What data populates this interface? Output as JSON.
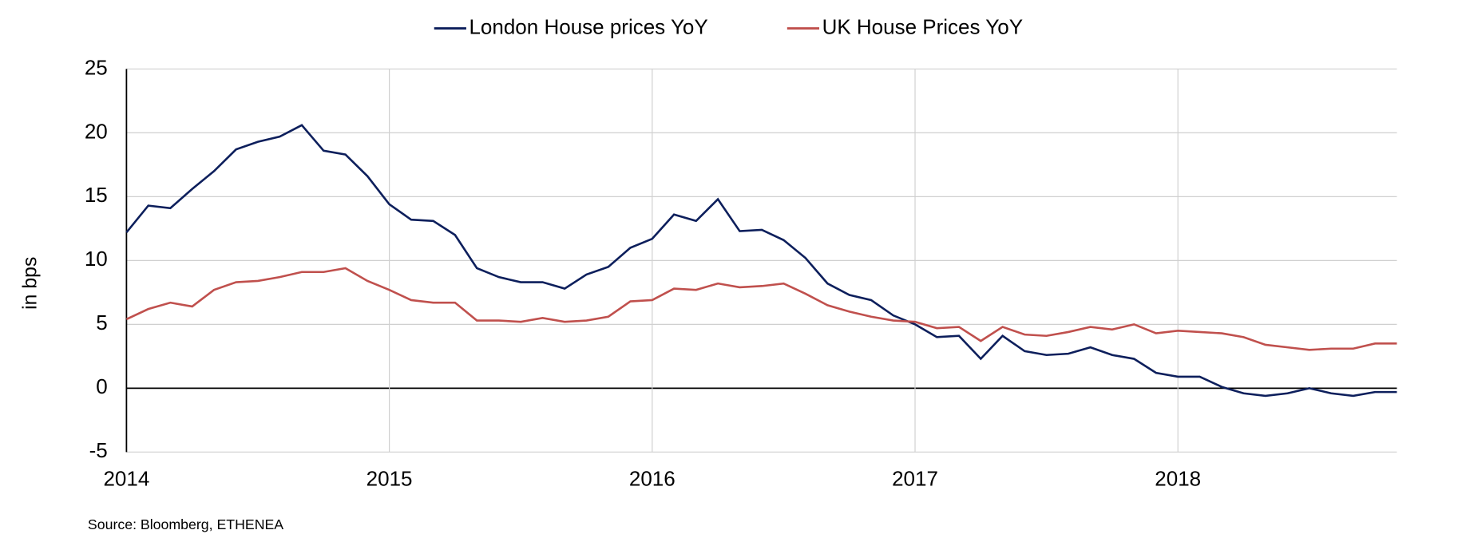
{
  "chart_data": {
    "type": "line",
    "y_label": "in bps",
    "source": "Source: Bloomberg, ETHENEA",
    "x": [
      2014,
      2014.083,
      2014.167,
      2014.25,
      2014.333,
      2014.417,
      2014.5,
      2014.583,
      2014.667,
      2014.75,
      2014.833,
      2014.917,
      2015,
      2015.083,
      2015.167,
      2015.25,
      2015.333,
      2015.417,
      2015.5,
      2015.583,
      2015.667,
      2015.75,
      2015.833,
      2015.917,
      2016,
      2016.083,
      2016.167,
      2016.25,
      2016.333,
      2016.417,
      2016.5,
      2016.583,
      2016.667,
      2016.75,
      2016.833,
      2016.917,
      2017,
      2017.083,
      2017.167,
      2017.25,
      2017.333,
      2017.417,
      2017.5,
      2017.583,
      2017.667,
      2017.75,
      2017.833,
      2017.917,
      2018,
      2018.083,
      2018.167,
      2018.25,
      2018.333,
      2018.417,
      2018.5,
      2018.583,
      2018.667,
      2018.75,
      2018.833
    ],
    "series": [
      {
        "name": "London House prices YoY",
        "color": "#0d1f5c",
        "values": [
          12.2,
          14.3,
          14.1,
          15.6,
          17.0,
          18.7,
          19.3,
          19.7,
          20.6,
          18.6,
          18.3,
          16.6,
          14.4,
          13.2,
          13.1,
          12.0,
          9.4,
          8.7,
          8.3,
          8.3,
          7.8,
          8.9,
          9.5,
          11.0,
          11.7,
          13.6,
          13.1,
          14.8,
          12.3,
          12.4,
          11.6,
          10.2,
          8.2,
          7.3,
          6.9,
          5.7,
          5.0,
          4.0,
          4.1,
          2.3,
          4.1,
          2.9,
          2.6,
          2.7,
          3.2,
          2.6,
          2.3,
          1.2,
          0.9,
          0.9,
          0.1,
          -0.4,
          -0.6,
          -0.4,
          0.0,
          -0.4,
          -0.6,
          -0.3,
          -0.3
        ]
      },
      {
        "name": "UK House Prices YoY",
        "color": "#c0504d",
        "values": [
          5.4,
          6.2,
          6.7,
          6.4,
          7.7,
          8.3,
          8.4,
          8.7,
          9.1,
          9.1,
          9.4,
          8.4,
          7.7,
          6.9,
          6.7,
          6.7,
          5.3,
          5.3,
          5.2,
          5.5,
          5.2,
          5.3,
          5.6,
          6.8,
          6.9,
          7.8,
          7.7,
          8.2,
          7.9,
          8.0,
          8.2,
          7.4,
          6.5,
          6.0,
          5.6,
          5.3,
          5.2,
          4.7,
          4.8,
          3.7,
          4.8,
          4.2,
          4.1,
          4.4,
          4.8,
          4.6,
          5.0,
          4.3,
          4.5,
          4.4,
          4.3,
          4.0,
          3.4,
          3.2,
          3.0,
          3.1,
          3.1,
          3.5,
          3.5
        ]
      }
    ],
    "xlim": [
      2014,
      2018.833
    ],
    "xticks": [
      2014,
      2015,
      2016,
      2017,
      2018
    ],
    "ylim": [
      -5,
      25
    ],
    "yticks": [
      -5,
      0,
      5,
      10,
      15,
      20,
      25
    ],
    "grid": true,
    "legend": "top"
  }
}
